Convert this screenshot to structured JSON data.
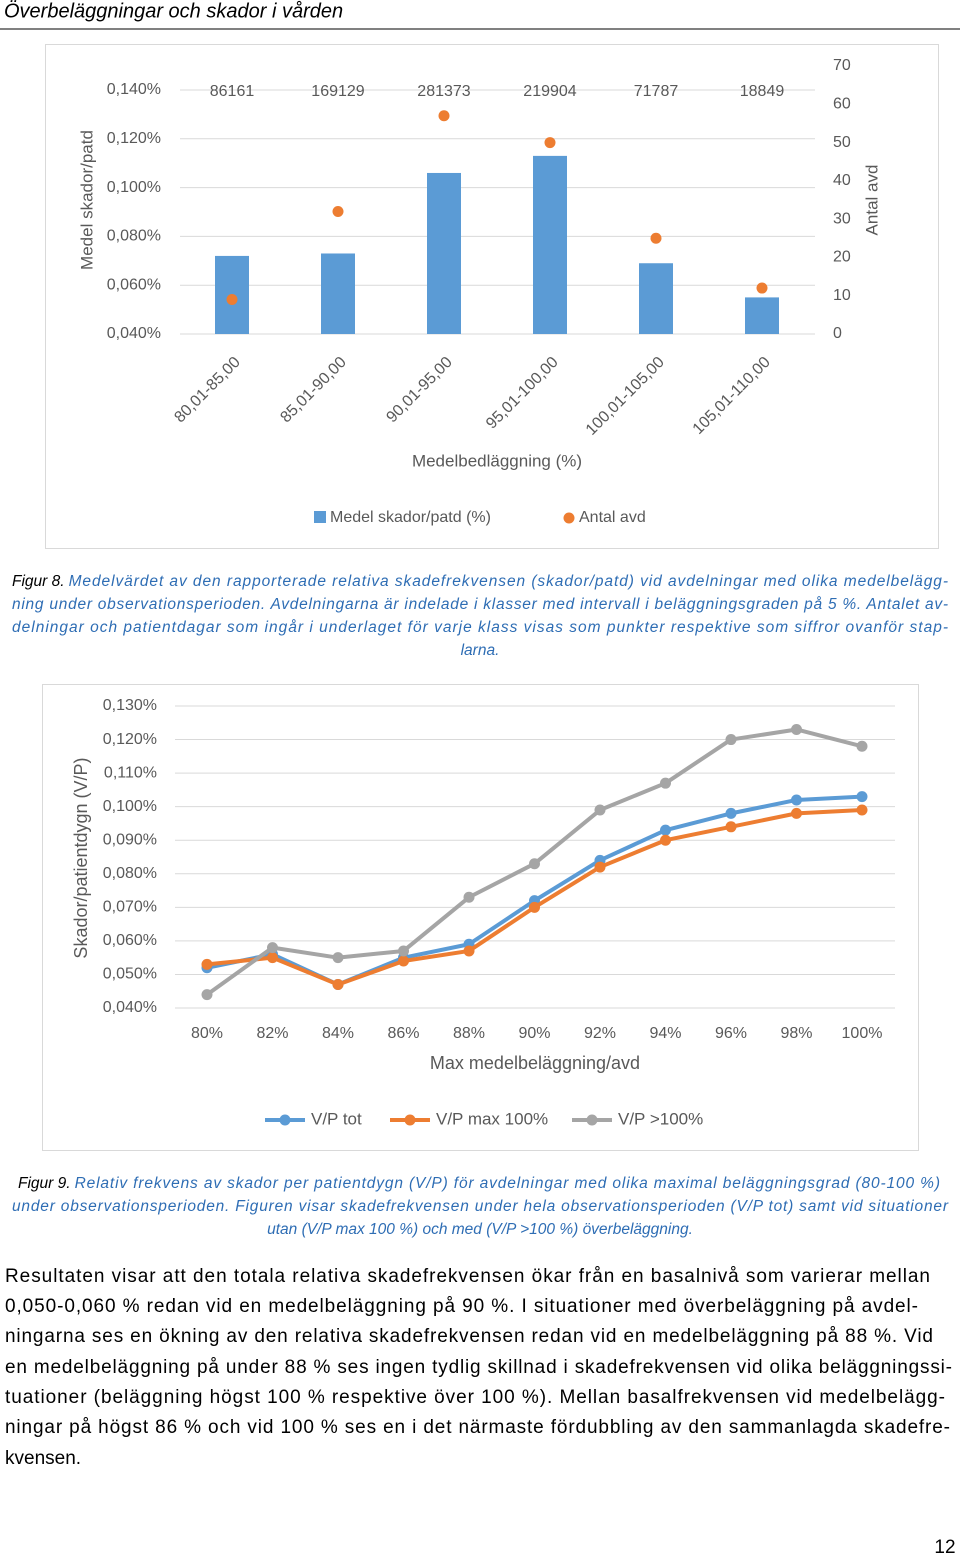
{
  "header": {
    "title": "Överbeläggningar och skador i vården"
  },
  "chart_data": [
    {
      "type": "bar",
      "categories": [
        "80,01-85,00",
        "85,01-90,00",
        "90,01-95,00",
        "95,01-100,00",
        "100,01-105,00",
        "105,01-110,00"
      ],
      "top_labels": [
        86161,
        169129,
        281373,
        219904,
        71787,
        18849
      ],
      "series": [
        {
          "name": "Medel skador/patd (%)",
          "type": "bar",
          "color": "#5b9bd5",
          "values": [
            0.072,
            0.073,
            0.106,
            0.113,
            0.069,
            0.055
          ]
        },
        {
          "name": "Antal avd",
          "type": "scatter",
          "axis": "y2",
          "color": "#ed7d31",
          "values": [
            9,
            32,
            57,
            50,
            25,
            12
          ]
        }
      ],
      "x_label": "Medelbedläggning (%)",
      "y_label": "Medel skador/patd",
      "y2_label": "Antal avd",
      "ylim": [
        0.04,
        0.14
      ],
      "yticks": [
        {
          "value": 0.04,
          "label": "0,040%"
        },
        {
          "value": 0.06,
          "label": "0,060%"
        },
        {
          "value": 0.08,
          "label": "0,080%"
        },
        {
          "value": 0.1,
          "label": "0,100%"
        },
        {
          "value": 0.12,
          "label": "0,120%"
        },
        {
          "value": 0.14,
          "label": "0,140%"
        }
      ],
      "y2lim": [
        0,
        70
      ],
      "y2ticks": [
        0,
        10,
        20,
        30,
        40,
        50,
        60,
        70
      ],
      "grid": true
    },
    {
      "type": "line",
      "categories": [
        "80%",
        "82%",
        "84%",
        "86%",
        "88%",
        "90%",
        "92%",
        "94%",
        "96%",
        "98%",
        "100%"
      ],
      "series": [
        {
          "name": "V/P tot",
          "color": "#5b9bd5",
          "values": [
            0.052,
            0.056,
            0.047,
            0.055,
            0.059,
            0.072,
            0.084,
            0.093,
            0.098,
            0.102,
            0.103
          ]
        },
        {
          "name": "V/P max 100%",
          "color": "#ed7d31",
          "values": [
            0.053,
            0.055,
            0.047,
            0.054,
            0.057,
            0.07,
            0.082,
            0.09,
            0.094,
            0.098,
            0.099
          ]
        },
        {
          "name": "V/P >100%",
          "color": "#a5a5a5",
          "values": [
            0.044,
            0.058,
            0.055,
            0.057,
            0.073,
            0.083,
            0.099,
            0.107,
            0.12,
            0.123,
            0.118
          ]
        }
      ],
      "x_label": "Max medelbeläggning/avd",
      "y_label": "Skador/patientdygn (V/P)",
      "ylim": [
        0.04,
        0.13
      ],
      "yticks": [
        {
          "value": 0.04,
          "label": "0,040%"
        },
        {
          "value": 0.05,
          "label": "0,050%"
        },
        {
          "value": 0.06,
          "label": "0,060%"
        },
        {
          "value": 0.07,
          "label": "0,070%"
        },
        {
          "value": 0.08,
          "label": "0,080%"
        },
        {
          "value": 0.09,
          "label": "0,090%"
        },
        {
          "value": 0.1,
          "label": "0,100%"
        },
        {
          "value": 0.11,
          "label": "0,110%"
        },
        {
          "value": 0.12,
          "label": "0,120%"
        },
        {
          "value": 0.13,
          "label": "0,130%"
        }
      ],
      "grid": true
    }
  ],
  "figure_8_caption": {
    "label": "Figur 8.",
    "lines": [
      "Medelvärdet av den rapporterade relativa skadefrekvensen (skador/patd) vid avdelningar med olika medelbelägg-",
      "ning under observationsperioden. Avdelningarna är indelade i klasser med intervall i beläggningsgraden på 5 %. Antalet av-",
      "delningar och patientdagar som ingår i underlaget för varje klass visas som punkter respektive som siffror ovanför stap-",
      "larna."
    ]
  },
  "figure_9_caption": {
    "label": "Figur 9.",
    "lines": [
      "Relativ frekvens av skador per patientdygn (V/P) för avdelningar med olika maximal beläggningsgrad (80-100 %)",
      "under observationsperioden. Figuren visar skadefrekvensen under hela observationsperioden (V/P tot) samt vid situationer",
      "utan (V/P max 100 %) och med (V/P >100 %) överbeläggning."
    ]
  },
  "body": {
    "lines": [
      "Resultaten visar att den totala relativa skadefrekvensen ökar från en basalnivå som varierar mellan",
      "0,050-0,060 % redan vid en medelbeläggning på 90 %. I situationer med överbeläggning på avdel-",
      "ningarna ses en ökning av den relativa skadefrekvensen redan vid en medelbeläggning på 88 %. Vid",
      "en medelbeläggning på under 88 % ses ingen tydlig skillnad i skadefrekvensen vid olika beläggningssi-",
      "tuationer (beläggning högst 100 % respektive över 100 %). Mellan basalfrekvensen vid medelbelägg-",
      "ningar på högst 86 % och vid 100 % ses en i det närmaste fördubbling av den sammanlagda skadefre-",
      "kvensen."
    ]
  },
  "page_number": "12"
}
